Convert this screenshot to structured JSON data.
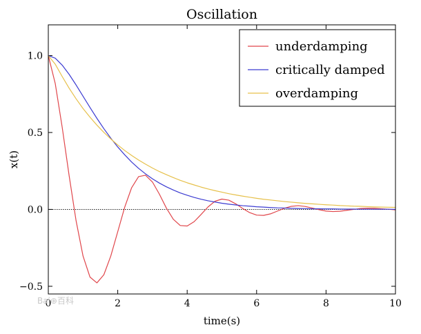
{
  "chart_data": {
    "type": "line",
    "title": "Oscillation",
    "xlabel": "time(s)",
    "ylabel": "x(t)",
    "xlim": [
      0,
      10
    ],
    "ylim": [
      -0.55,
      1.2
    ],
    "xticks": [
      0,
      2,
      4,
      6,
      8,
      10
    ],
    "xtick_labels": [
      "0",
      "2",
      "4",
      "6",
      "8",
      "10"
    ],
    "yticks": [
      -0.5,
      0.0,
      0.5,
      1.0
    ],
    "ytick_labels": [
      "−0.5",
      "0.0",
      "0.5",
      "1.0"
    ],
    "grid": false,
    "legend_position": "top-right",
    "reference_line_y": 0,
    "series": [
      {
        "name": "underdamping",
        "color": "#e0454a",
        "x": [
          0,
          0.2,
          0.4,
          0.6,
          0.8,
          1.0,
          1.2,
          1.4,
          1.6,
          1.8,
          2.0,
          2.2,
          2.4,
          2.6,
          2.8,
          3.0,
          3.2,
          3.4,
          3.6,
          3.8,
          4.0,
          4.2,
          4.4,
          4.6,
          4.8,
          5.0,
          5.2,
          5.4,
          5.6,
          5.8,
          6.0,
          6.2,
          6.4,
          6.6,
          6.8,
          7.0,
          7.2,
          7.4,
          7.6,
          7.8,
          8.0,
          8.2,
          8.4,
          8.6,
          8.8,
          9.0,
          9.2,
          9.4,
          9.6,
          9.8,
          10.0
        ],
        "values": [
          1.0,
          0.818,
          0.534,
          0.219,
          -0.074,
          -0.303,
          -0.44,
          -0.478,
          -0.425,
          -0.303,
          -0.145,
          0.014,
          0.141,
          0.213,
          0.222,
          0.178,
          0.099,
          0.009,
          -0.064,
          -0.105,
          -0.108,
          -0.08,
          -0.033,
          0.016,
          0.053,
          0.067,
          0.06,
          0.036,
          0.006,
          -0.021,
          -0.037,
          -0.039,
          -0.029,
          -0.011,
          0.007,
          0.02,
          0.024,
          0.019,
          0.009,
          -0.002,
          -0.011,
          -0.014,
          -0.012,
          -0.006,
          0.0,
          0.006,
          0.008,
          0.007,
          0.004,
          0.001,
          -0.003
        ]
      },
      {
        "name": "critically damped",
        "color": "#3b3bd1",
        "x": [
          0,
          0.2,
          0.4,
          0.6,
          0.8,
          1.0,
          1.2,
          1.4,
          1.6,
          1.8,
          2.0,
          2.2,
          2.4,
          2.6,
          2.8,
          3.0,
          3.2,
          3.4,
          3.6,
          3.8,
          4.0,
          4.2,
          4.4,
          4.6,
          4.8,
          5.0,
          5.2,
          5.4,
          5.6,
          5.8,
          6.0,
          6.2,
          6.4,
          6.6,
          6.8,
          7.0,
          7.2,
          7.4,
          7.6,
          7.8,
          8.0,
          8.2,
          8.4,
          8.6,
          8.8,
          9.0,
          9.2,
          9.4,
          9.6,
          9.8,
          10.0
        ],
        "values": [
          1.0,
          0.983,
          0.938,
          0.878,
          0.809,
          0.736,
          0.663,
          0.592,
          0.525,
          0.463,
          0.406,
          0.355,
          0.308,
          0.267,
          0.231,
          0.199,
          0.171,
          0.147,
          0.126,
          0.107,
          0.092,
          0.078,
          0.066,
          0.056,
          0.048,
          0.04,
          0.034,
          0.029,
          0.024,
          0.021,
          0.017,
          0.015,
          0.012,
          0.01,
          0.009,
          0.007,
          0.006,
          0.005,
          0.004,
          0.004,
          0.003,
          0.003,
          0.002,
          0.002,
          0.002,
          0.001,
          0.001,
          0.001,
          0.001,
          0.001,
          0.0
        ]
      },
      {
        "name": "overdamping",
        "color": "#e6c04a",
        "x": [
          0,
          0.2,
          0.4,
          0.6,
          0.8,
          1.0,
          1.2,
          1.4,
          1.6,
          1.8,
          2.0,
          2.2,
          2.4,
          2.6,
          2.8,
          3.0,
          3.2,
          3.4,
          3.6,
          3.8,
          4.0,
          4.2,
          4.4,
          4.6,
          4.8,
          5.0,
          5.2,
          5.4,
          5.6,
          5.8,
          6.0,
          6.2,
          6.4,
          6.6,
          6.8,
          7.0,
          7.2,
          7.4,
          7.6,
          7.8,
          8.0,
          8.2,
          8.4,
          8.6,
          8.8,
          9.0,
          9.2,
          9.4,
          9.6,
          9.8,
          10.0
        ],
        "values": [
          1.0,
          0.944,
          0.864,
          0.788,
          0.719,
          0.656,
          0.6,
          0.548,
          0.501,
          0.458,
          0.419,
          0.383,
          0.351,
          0.321,
          0.294,
          0.269,
          0.246,
          0.226,
          0.207,
          0.189,
          0.173,
          0.159,
          0.145,
          0.133,
          0.122,
          0.112,
          0.102,
          0.094,
          0.086,
          0.079,
          0.072,
          0.066,
          0.061,
          0.056,
          0.051,
          0.047,
          0.043,
          0.039,
          0.036,
          0.033,
          0.03,
          0.028,
          0.025,
          0.023,
          0.021,
          0.02,
          0.018,
          0.016,
          0.015,
          0.014,
          0.013
        ]
      }
    ]
  }
}
